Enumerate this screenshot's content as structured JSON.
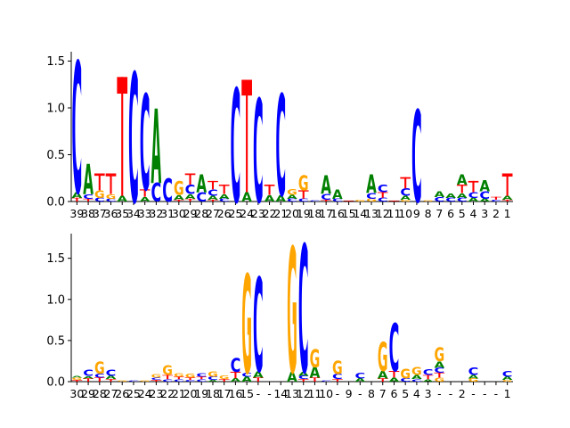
{
  "chart_data": [
    {
      "type": "sequence-logo",
      "ylim": [
        0,
        1.6
      ],
      "yticks": [
        0.0,
        0.5,
        1.0,
        1.5
      ],
      "ytick_labels": [
        "0.0",
        "0.5",
        "1.0",
        "1.5"
      ],
      "xtick_labels": [
        "39",
        "38",
        "37",
        "36",
        "35",
        "34",
        "33",
        "32",
        "31",
        "30",
        "29",
        "28",
        "27",
        "26",
        "25",
        "24",
        "23",
        "22",
        "21",
        "20",
        "19",
        "18",
        "17",
        "16",
        "15",
        "14",
        "13",
        "12",
        "11",
        "10",
        "9",
        "8",
        "7",
        "6",
        "5",
        "4",
        "3",
        "2",
        "1"
      ],
      "colors": {
        "A": "#008000",
        "C": "#0000ff",
        "G": "#ffa500",
        "T": "#ff0000"
      },
      "columns": [
        [
          [
            "T",
            0.04
          ],
          [
            "A",
            0.06
          ],
          [
            "C",
            1.4
          ]
        ],
        [
          [
            "T",
            0.03
          ],
          [
            "C",
            0.05
          ],
          [
            "A",
            0.32
          ]
        ],
        [
          [
            "C",
            0.04
          ],
          [
            "G",
            0.08
          ],
          [
            "T",
            0.18
          ]
        ],
        [
          [
            "C",
            0.03
          ],
          [
            "G",
            0.05
          ],
          [
            "T",
            0.22
          ]
        ],
        [
          [
            "A",
            0.06
          ],
          [
            "T",
            1.27
          ]
        ],
        [
          [
            "C",
            1.38
          ]
        ],
        [
          [
            "A",
            0.05
          ],
          [
            "T",
            0.08
          ],
          [
            "C",
            1.02
          ]
        ],
        [
          [
            "C",
            0.2
          ],
          [
            "A",
            0.79
          ]
        ],
        [
          [
            "C",
            0.25
          ]
        ],
        [
          [
            "T",
            0.02
          ],
          [
            "A",
            0.05
          ],
          [
            "G",
            0.15
          ]
        ],
        [
          [
            "T",
            0.03
          ],
          [
            "A",
            0.05
          ],
          [
            "C",
            0.1
          ],
          [
            "T",
            0.12
          ]
        ],
        [
          [
            "C",
            0.1
          ],
          [
            "A",
            0.19
          ]
        ],
        [
          [
            "T",
            0.02
          ],
          [
            "A",
            0.04
          ],
          [
            "C",
            0.07
          ],
          [
            "T",
            0.09
          ]
        ],
        [
          [
            "C",
            0.03
          ],
          [
            "A",
            0.05
          ],
          [
            "T",
            0.1
          ]
        ],
        [
          [
            "C",
            1.21
          ]
        ],
        [
          [
            "A",
            0.1
          ],
          [
            "T",
            1.2
          ]
        ],
        [
          [
            "C",
            1.1
          ]
        ],
        [
          [
            "A",
            0.07
          ],
          [
            "T",
            0.11
          ]
        ],
        [
          [
            "A",
            0.07
          ],
          [
            "C",
            1.08
          ]
        ],
        [
          [
            "C",
            0.03
          ],
          [
            "A",
            0.04
          ],
          [
            "G",
            0.06
          ]
        ],
        [
          [
            "C",
            0.03
          ],
          [
            "T",
            0.09
          ],
          [
            "G",
            0.16
          ]
        ],
        [
          [
            "C",
            0.01
          ]
        ],
        [
          [
            "T",
            0.02
          ],
          [
            "C",
            0.06
          ],
          [
            "A",
            0.2
          ]
        ],
        [
          [
            "C",
            0.03
          ],
          [
            "A",
            0.1
          ]
        ],
        [
          [
            "T",
            0.01
          ]
        ],
        [
          [
            "G",
            0.02
          ]
        ],
        [
          [
            "G",
            0.03
          ],
          [
            "C",
            0.06
          ],
          [
            "A",
            0.2
          ]
        ],
        [
          [
            "C",
            0.04
          ],
          [
            "T",
            0.06
          ],
          [
            "C",
            0.08
          ]
        ],
        [
          [
            "T",
            0.01
          ]
        ],
        [
          [
            "G",
            0.02
          ],
          [
            "A",
            0.04
          ],
          [
            "C",
            0.08
          ],
          [
            "T",
            0.12
          ]
        ],
        [
          [
            "C",
            0.98
          ]
        ],
        [
          [
            "G",
            0.01
          ]
        ],
        [
          [
            "C",
            0.05
          ],
          [
            "A",
            0.06
          ]
        ],
        [
          [
            "C",
            0.04
          ],
          [
            "A",
            0.05
          ]
        ],
        [
          [
            "C",
            0.04
          ],
          [
            "A",
            0.05
          ],
          [
            "T",
            0.09
          ],
          [
            "A",
            0.11
          ]
        ],
        [
          [
            "A",
            0.04
          ],
          [
            "C",
            0.06
          ],
          [
            "T",
            0.12
          ]
        ],
        [
          [
            "A",
            0.03
          ],
          [
            "C",
            0.08
          ],
          [
            "A",
            0.12
          ]
        ],
        [
          [
            "C",
            0.02
          ],
          [
            "T",
            0.03
          ]
        ],
        [
          [
            "T",
            0.02
          ],
          [
            "A",
            0.04
          ],
          [
            "T",
            0.24
          ]
        ]
      ]
    },
    {
      "type": "sequence-logo",
      "ylim": [
        0,
        1.8
      ],
      "yticks": [
        0.0,
        0.5,
        1.0,
        1.5
      ],
      "ytick_labels": [
        "0.0",
        "0.5",
        "1.0",
        "1.5"
      ],
      "xtick_labels": [
        "30",
        "29",
        "28",
        "27",
        "26",
        "25",
        "24",
        "23",
        "22",
        "21",
        "20",
        "19",
        "18",
        "17",
        "16",
        "15",
        "-",
        "-",
        "14",
        "13",
        "12",
        "11",
        "10",
        "-",
        "9",
        "-",
        "8",
        "7",
        "6",
        "5",
        "4",
        "3",
        "-",
        "-",
        "2",
        "-",
        "-",
        "-",
        "1"
      ],
      "colors": {
        "A": "#008000",
        "C": "#0000ff",
        "G": "#ffa500",
        "T": "#ff0000"
      },
      "columns": [
        [
          [
            "T",
            0.02
          ],
          [
            "G",
            0.03
          ],
          [
            "A",
            0.02
          ]
        ],
        [
          [
            "T",
            0.04
          ],
          [
            "A",
            0.03
          ],
          [
            "C",
            0.08
          ]
        ],
        [
          [
            "T",
            0.05
          ],
          [
            "C",
            0.05
          ],
          [
            "G",
            0.15
          ]
        ],
        [
          [
            "T",
            0.03
          ],
          [
            "A",
            0.04
          ],
          [
            "C",
            0.08
          ]
        ],
        [
          [
            "G",
            0.01
          ]
        ],
        [
          [
            "C",
            0.01
          ]
        ],
        [
          [
            "G",
            0.01
          ]
        ],
        [
          [
            "T",
            0.02
          ],
          [
            "C",
            0.03
          ],
          [
            "G",
            0.04
          ]
        ],
        [
          [
            "C",
            0.03
          ],
          [
            "T",
            0.05
          ],
          [
            "G",
            0.12
          ]
        ],
        [
          [
            "C",
            0.03
          ],
          [
            "T",
            0.03
          ],
          [
            "G",
            0.04
          ]
        ],
        [
          [
            "C",
            0.02
          ],
          [
            "T",
            0.03
          ],
          [
            "G",
            0.05
          ]
        ],
        [
          [
            "C",
            0.03
          ],
          [
            "T",
            0.03
          ],
          [
            "C",
            0.04
          ]
        ],
        [
          [
            "A",
            0.02
          ],
          [
            "C",
            0.04
          ],
          [
            "G",
            0.06
          ]
        ],
        [
          [
            "T",
            0.03
          ],
          [
            "G",
            0.04
          ]
        ],
        [
          [
            "A",
            0.04
          ],
          [
            "T",
            0.08
          ],
          [
            "C",
            0.17
          ]
        ],
        [
          [
            "A",
            0.06
          ],
          [
            "C",
            0.05
          ],
          [
            "G",
            1.2
          ]
        ],
        [
          [
            "T",
            0.05
          ],
          [
            "A",
            0.08
          ],
          [
            "C",
            1.14
          ]
        ],
        [],
        [],
        [
          [
            "A",
            0.12
          ],
          [
            "G",
            1.52
          ]
        ],
        [
          [
            "T",
            0.03
          ],
          [
            "C",
            0.04
          ],
          [
            "A",
            0.05
          ],
          [
            "C",
            1.55
          ]
        ],
        [
          [
            "T",
            0.05
          ],
          [
            "A",
            0.13
          ],
          [
            "G",
            0.22
          ]
        ],
        [
          [
            "C",
            0.01
          ]
        ],
        [
          [
            "T",
            0.03
          ],
          [
            "C",
            0.06
          ],
          [
            "G",
            0.16
          ]
        ],
        [],
        [
          [
            "A",
            0.04
          ],
          [
            "C",
            0.07
          ]
        ],
        [],
        [
          [
            "T",
            0.04
          ],
          [
            "A",
            0.09
          ],
          [
            "G",
            0.35
          ]
        ],
        [
          [
            "A",
            0.05
          ],
          [
            "T",
            0.08
          ],
          [
            "C",
            0.58
          ]
        ],
        [
          [
            "C",
            0.04
          ],
          [
            "G",
            0.12
          ]
        ],
        [
          [
            "C",
            0.03
          ],
          [
            "A",
            0.05
          ],
          [
            "G",
            0.1
          ]
        ],
        [
          [
            "A",
            0.03
          ],
          [
            "T",
            0.05
          ],
          [
            "C",
            0.07
          ]
        ],
        [
          [
            "G",
            0.05
          ],
          [
            "T",
            0.06
          ],
          [
            "C",
            0.06
          ],
          [
            "A",
            0.08
          ],
          [
            "G",
            0.17
          ]
        ],
        [],
        [],
        [
          [
            "G",
            0.04
          ],
          [
            "A",
            0.04
          ],
          [
            "C",
            0.09
          ]
        ],
        [],
        [],
        [
          [
            "G",
            0.02
          ],
          [
            "A",
            0.04
          ],
          [
            "C",
            0.07
          ]
        ]
      ]
    }
  ]
}
